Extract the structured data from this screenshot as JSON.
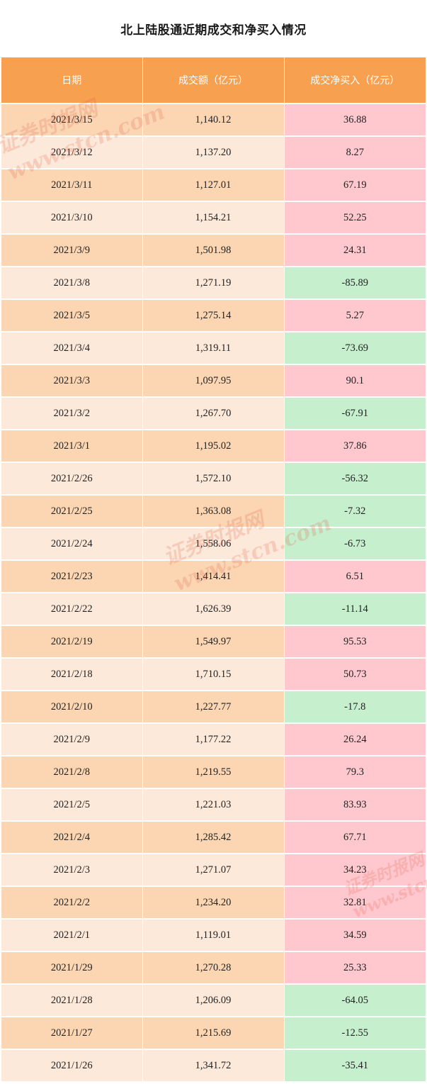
{
  "title": "北上陆股通近期成交和净买入情况",
  "table": {
    "headers": [
      "日期",
      "成交额（亿元）",
      "成交净买入（亿元）"
    ],
    "rows": [
      {
        "date": "2021/3/15",
        "turnover": "1,140.12",
        "net_buy": "36.88"
      },
      {
        "date": "2021/3/12",
        "turnover": "1,137.20",
        "net_buy": "8.27"
      },
      {
        "date": "2021/3/11",
        "turnover": "1,127.01",
        "net_buy": "67.19"
      },
      {
        "date": "2021/3/10",
        "turnover": "1,154.21",
        "net_buy": "52.25"
      },
      {
        "date": "2021/3/9",
        "turnover": "1,501.98",
        "net_buy": "24.31"
      },
      {
        "date": "2021/3/8",
        "turnover": "1,271.19",
        "net_buy": "-85.89"
      },
      {
        "date": "2021/3/5",
        "turnover": "1,275.14",
        "net_buy": "5.27"
      },
      {
        "date": "2021/3/4",
        "turnover": "1,319.11",
        "net_buy": "-73.69"
      },
      {
        "date": "2021/3/3",
        "turnover": "1,097.95",
        "net_buy": "90.1"
      },
      {
        "date": "2021/3/2",
        "turnover": "1,267.70",
        "net_buy": "-67.91"
      },
      {
        "date": "2021/3/1",
        "turnover": "1,195.02",
        "net_buy": "37.86"
      },
      {
        "date": "2021/2/26",
        "turnover": "1,572.10",
        "net_buy": "-56.32"
      },
      {
        "date": "2021/2/25",
        "turnover": "1,363.08",
        "net_buy": "-7.32"
      },
      {
        "date": "2021/2/24",
        "turnover": "1,558.06",
        "net_buy": "-6.73"
      },
      {
        "date": "2021/2/23",
        "turnover": "1,414.41",
        "net_buy": "6.51"
      },
      {
        "date": "2021/2/22",
        "turnover": "1,626.39",
        "net_buy": "-11.14"
      },
      {
        "date": "2021/2/19",
        "turnover": "1,549.97",
        "net_buy": "95.53"
      },
      {
        "date": "2021/2/18",
        "turnover": "1,710.15",
        "net_buy": "50.73"
      },
      {
        "date": "2021/2/10",
        "turnover": "1,227.77",
        "net_buy": "-17.8"
      },
      {
        "date": "2021/2/9",
        "turnover": "1,177.22",
        "net_buy": "26.24"
      },
      {
        "date": "2021/2/8",
        "turnover": "1,219.55",
        "net_buy": "79.3"
      },
      {
        "date": "2021/2/5",
        "turnover": "1,221.03",
        "net_buy": "83.93"
      },
      {
        "date": "2021/2/4",
        "turnover": "1,285.42",
        "net_buy": "67.71"
      },
      {
        "date": "2021/2/3",
        "turnover": "1,271.07",
        "net_buy": "34.23"
      },
      {
        "date": "2021/2/2",
        "turnover": "1,234.20",
        "net_buy": "32.81"
      },
      {
        "date": "2021/2/1",
        "turnover": "1,119.01",
        "net_buy": "34.59"
      },
      {
        "date": "2021/1/29",
        "turnover": "1,270.28",
        "net_buy": "25.33"
      },
      {
        "date": "2021/1/28",
        "turnover": "1,206.09",
        "net_buy": "-64.05"
      },
      {
        "date": "2021/1/27",
        "turnover": "1,215.69",
        "net_buy": "-12.55"
      },
      {
        "date": "2021/1/26",
        "turnover": "1,341.72",
        "net_buy": "-35.41"
      }
    ]
  },
  "colors": {
    "header_bg": "#f7a050",
    "row_odd_bg": "#fcd6b2",
    "row_even_bg": "#fde9d9",
    "positive_bg": "#ffc7ce",
    "negative_bg": "#c6efce",
    "watermark": "#e15f4b"
  },
  "watermarks": [
    {
      "line1": "证券时报网",
      "line2": "www.stcn.com"
    },
    {
      "line1": "证券时报网",
      "line2": "www.stcn.com"
    },
    {
      "line1": "证券时报网",
      "line2": "www.stcn.com"
    }
  ]
}
